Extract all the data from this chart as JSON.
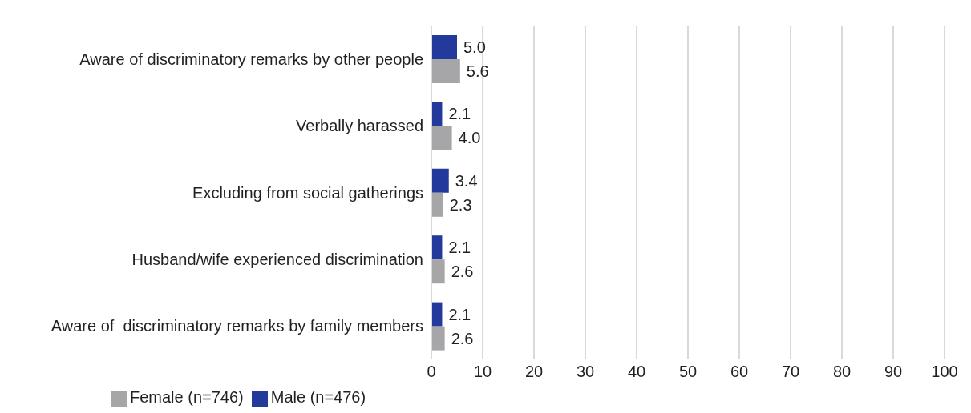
{
  "chart_data": {
    "type": "bar",
    "orientation": "horizontal",
    "categories": [
      "Aware of discriminatory remarks by other people",
      "Verbally harassed",
      "Excluding from social gatherings",
      "Husband/wife experienced discrimination",
      "Aware of  discriminatory remarks by family members"
    ],
    "series": [
      {
        "name": "Male (n=476)",
        "color": "#23399b",
        "values": [
          5.0,
          2.1,
          3.4,
          2.1,
          2.1
        ],
        "value_labels": [
          "5.0",
          "2.1",
          "3.4",
          "2.1",
          "2.1"
        ]
      },
      {
        "name": "Female (n=746)",
        "color": "#a6a6a9",
        "values": [
          5.6,
          4.0,
          2.3,
          2.6,
          2.6
        ],
        "value_labels": [
          "5.6",
          "4.0",
          "2.3",
          "2.6",
          "2.6"
        ]
      }
    ],
    "xlim": [
      0,
      100
    ],
    "xticks": [
      0,
      10,
      20,
      30,
      40,
      50,
      60,
      70,
      80,
      90,
      100
    ],
    "grid": "x",
    "legend": "bottom left"
  }
}
